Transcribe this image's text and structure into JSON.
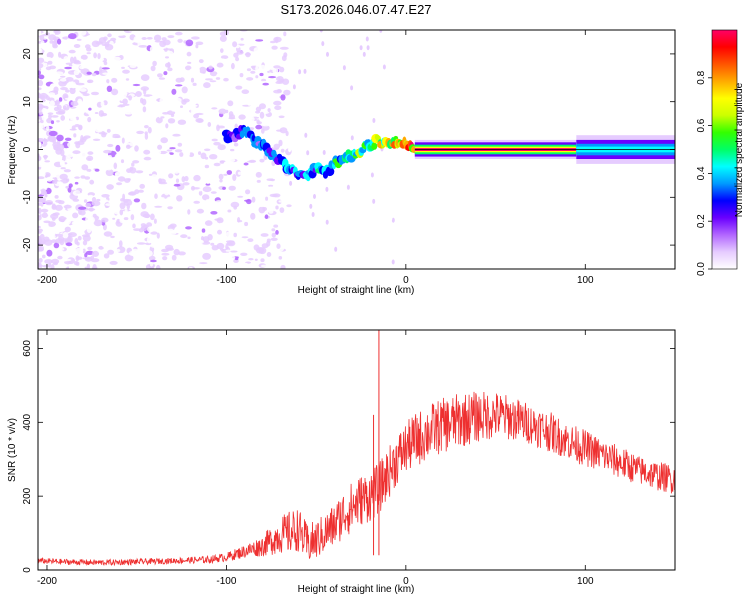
{
  "title": "S173.2026.046.07.47.E27",
  "chart_data": [
    {
      "type": "heatmap",
      "name": "spectrogram",
      "xlabel": "Height of straight line (km)",
      "ylabel": "Frequency (Hz)",
      "xlim": [
        -205,
        150
      ],
      "ylim": [
        -25,
        25
      ],
      "xticks": [
        -200,
        -100,
        0,
        100
      ],
      "yticks": [
        -20,
        -10,
        0,
        10,
        20
      ],
      "colorbar": {
        "label": "Normalized spectral amplitude",
        "range": [
          0,
          1
        ],
        "ticks": [
          "0.0",
          "0.2",
          "0.4",
          "0.6",
          "0.8"
        ],
        "tick_values": [
          0.0,
          0.2,
          0.4,
          0.6,
          0.8
        ],
        "colormap": [
          "#ffffff",
          "#e6ccff",
          "#b266ff",
          "#6a00ff",
          "#0000ff",
          "#0099ff",
          "#00ffff",
          "#00ff66",
          "#33ff00",
          "#ccff00",
          "#ffff00",
          "#ffaa00",
          "#ff5500",
          "#ff0000",
          "#ff0066"
        ]
      },
      "ridge": {
        "x": [
          -100,
          -95,
          -90,
          -85,
          -80,
          -75,
          -70,
          -65,
          -60,
          -55,
          -50,
          -45,
          -40,
          -35,
          -30,
          -25,
          -20,
          -15,
          -10,
          -5,
          0,
          5,
          10,
          50,
          100,
          150
        ],
        "freq": [
          3,
          3,
          4,
          2,
          1,
          -1,
          -2,
          -4,
          -5,
          -6,
          -4,
          -5,
          -3,
          -2,
          -1,
          0,
          1,
          2,
          1,
          2,
          1,
          0,
          0,
          0,
          0,
          0
        ],
        "amplitude": [
          0.3,
          0.3,
          0.35,
          0.35,
          0.35,
          0.35,
          0.4,
          0.4,
          0.4,
          0.4,
          0.45,
          0.45,
          0.5,
          0.6,
          0.6,
          0.6,
          0.65,
          0.7,
          0.7,
          0.75,
          0.8,
          0.85,
          0.95,
          0.95,
          0.95,
          0.45
        ]
      }
    },
    {
      "type": "line",
      "name": "snr",
      "xlabel": "Height of straight line (km)",
      "ylabel": "SNR (10 * v/v)",
      "xlim": [
        -205,
        150
      ],
      "ylim": [
        0,
        650
      ],
      "xticks": [
        -200,
        -100,
        0,
        100
      ],
      "yticks": [
        0,
        200,
        400,
        600
      ],
      "color": "#ee3030",
      "x": [
        -205,
        -190,
        -170,
        -150,
        -130,
        -110,
        -100,
        -90,
        -80,
        -75,
        -70,
        -65,
        -60,
        -55,
        -50,
        -45,
        -40,
        -35,
        -30,
        -25,
        -20,
        -15,
        -10,
        -5,
        0,
        5,
        10,
        15,
        20,
        30,
        40,
        50,
        60,
        70,
        80,
        90,
        100,
        110,
        120,
        130,
        140,
        150
      ],
      "y": [
        25,
        22,
        20,
        22,
        25,
        28,
        35,
        50,
        65,
        80,
        95,
        100,
        110,
        70,
        80,
        100,
        120,
        150,
        170,
        190,
        200,
        220,
        260,
        300,
        330,
        350,
        365,
        380,
        390,
        405,
        415,
        420,
        410,
        395,
        375,
        350,
        330,
        310,
        290,
        270,
        255,
        245
      ],
      "noise_amplitude": [
        8,
        8,
        8,
        8,
        8,
        10,
        12,
        18,
        28,
        40,
        50,
        60,
        60,
        55,
        55,
        55,
        60,
        65,
        70,
        70,
        70,
        70,
        70,
        70,
        70,
        75,
        75,
        75,
        75,
        75,
        70,
        65,
        60,
        55,
        55,
        50,
        50,
        45,
        45,
        40,
        40,
        40
      ],
      "annotations": [
        {
          "label": "spike",
          "x": -15,
          "y": 650
        },
        {
          "label": "spike",
          "x": -18,
          "y": 420
        }
      ]
    }
  ]
}
